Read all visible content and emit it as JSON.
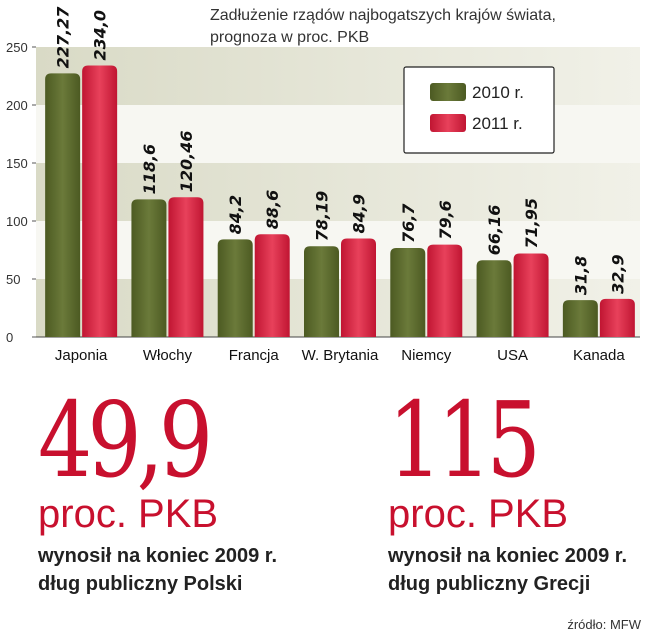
{
  "chart_data": {
    "type": "bar",
    "title_lines": [
      "Zadłużenie rządów najbogatszych krajów świata,",
      "prognoza w proc. PKB"
    ],
    "categories": [
      "Japonia",
      "Włochy",
      "Francja",
      "W. Brytania",
      "Niemcy",
      "USA",
      "Kanada"
    ],
    "series": [
      {
        "name": "2010 r.",
        "color": "#5b6a2c",
        "values": [
          227.27,
          118.6,
          84.2,
          78.19,
          76.7,
          66.16,
          31.8
        ],
        "labels": [
          "227,27",
          "118,6",
          "84,2",
          "78,19",
          "76,7",
          "66,16",
          "31,8"
        ]
      },
      {
        "name": "2011 r.",
        "color": "#d8203f",
        "values": [
          234.0,
          120.46,
          88.6,
          84.9,
          79.6,
          71.95,
          32.9
        ],
        "labels": [
          "234,0",
          "120,46",
          "88,6",
          "84,9",
          "79,6",
          "71,95",
          "32,9"
        ]
      }
    ],
    "yticks": [
      0,
      50,
      100,
      150,
      200,
      250
    ],
    "ylim": [
      0,
      250
    ],
    "legend_position": "top-right",
    "grid_bands": true
  },
  "stats": [
    {
      "value": "49,9",
      "unit": "proc. PKB",
      "line1": "wynosił na koniec 2009 r.",
      "line2": "dług publiczny Polski"
    },
    {
      "value": "115",
      "unit": "proc. PKB",
      "line1": "wynosił na koniec 2009 r.",
      "line2": "dług publiczny Grecji"
    }
  ],
  "source": "źródło: MFW"
}
